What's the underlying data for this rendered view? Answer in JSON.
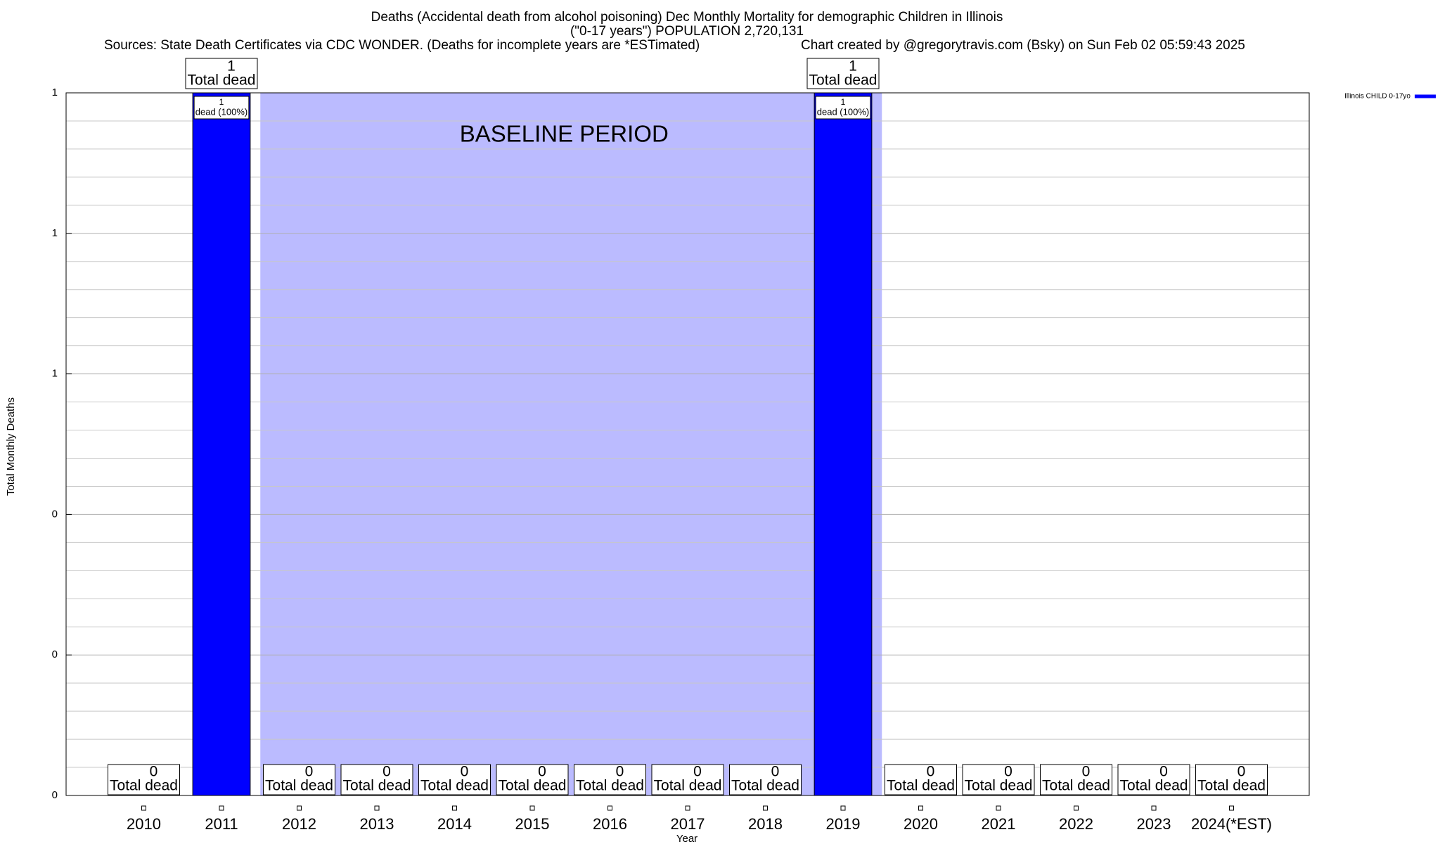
{
  "chart_data": {
    "type": "bar",
    "title_lines": [
      "Deaths (Accidental death from alcohol poisoning) Dec Monthly Mortality for demographic Children in Illinois",
      "(\"0-17 years\") POPULATION 2,720,131"
    ],
    "source": "Sources: State Death Certificates via CDC WONDER. (Deaths for incomplete years are *ESTimated)",
    "credit": "Chart created by @gregorytravis.com (Bsky) on Sun Feb 02 05:59:43 2025",
    "x_label": "Year",
    "y_label": "Total Monthly Deaths",
    "categories": [
      "2010",
      "2011",
      "2012",
      "2013",
      "2014",
      "2015",
      "2016",
      "2017",
      "2018",
      "2019",
      "2020",
      "2021",
      "2022",
      "2023",
      "2024(*EST)"
    ],
    "series": [
      {
        "name": "Illinois CHILD 0-17yo",
        "color": "#0000ff",
        "values": [
          0,
          1,
          0,
          0,
          0,
          0,
          0,
          0,
          0,
          1,
          0,
          0,
          0,
          0,
          0
        ]
      }
    ],
    "total_label": "Total dead",
    "bar_label": "dead (100%)",
    "baseline": {
      "label": "BASELINE PERIOD",
      "start": "2012",
      "end": "2019",
      "color": "#bbbbff"
    },
    "ylim": [
      0,
      1
    ],
    "yticks": [
      0,
      {
        "value": 0.2,
        "label": "0"
      },
      {
        "value": 0.4,
        "label": "0"
      },
      {
        "value": 0.6,
        "label": "1"
      },
      {
        "value": 0.8,
        "label": "1"
      },
      1
    ],
    "minor_yticks": [
      0.04,
      0.08,
      0.12,
      0.16,
      0.24,
      0.28,
      0.32,
      0.36,
      0.44,
      0.48,
      0.52,
      0.56,
      0.64,
      0.68,
      0.72,
      0.76,
      0.84,
      0.88,
      0.92,
      0.96
    ],
    "grid": true,
    "legend": "top-right"
  }
}
